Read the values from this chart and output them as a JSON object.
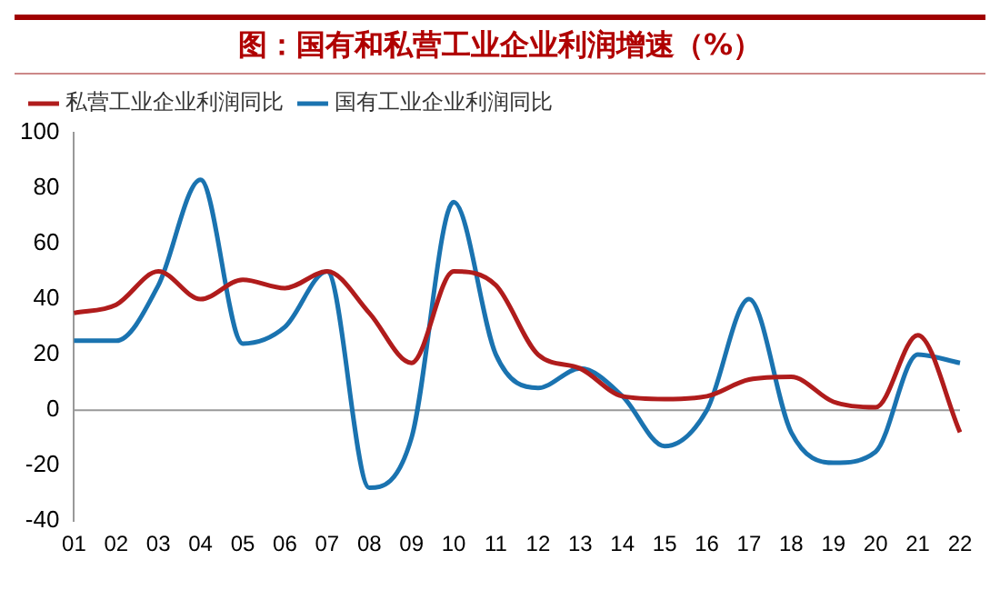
{
  "chart_data": {
    "type": "line",
    "title": "图：国有和私营工业企业利润增速（%）",
    "categories": [
      "01",
      "02",
      "03",
      "04",
      "05",
      "06",
      "07",
      "08",
      "09",
      "10",
      "11",
      "12",
      "13",
      "14",
      "15",
      "16",
      "17",
      "18",
      "19",
      "20",
      "21",
      "22"
    ],
    "series": [
      {
        "name": "私营工业企业利润同比",
        "color": "#b01c1c",
        "values": [
          35,
          38,
          50,
          40,
          47,
          44,
          50,
          35,
          17,
          50,
          45,
          20,
          15,
          5,
          4,
          5,
          11,
          12,
          3,
          1,
          27,
          -8
        ]
      },
      {
        "name": "国有工业企业利润同比",
        "color": "#1a73b0",
        "values": [
          25,
          25,
          45,
          83,
          24,
          30,
          50,
          -28,
          -10,
          75,
          20,
          8,
          15,
          5,
          -13,
          0,
          40,
          -8,
          -19,
          -15,
          20,
          17
        ]
      }
    ],
    "ylim": [
      -40,
      100
    ],
    "yticks": [
      -40,
      -20,
      0,
      20,
      40,
      60,
      80,
      100
    ],
    "grid": false,
    "ref_lines": [
      {
        "axis": "y",
        "value": 0,
        "color": "#999999"
      }
    ],
    "legend": "top left",
    "marker": "none",
    "line_style": "solid"
  }
}
